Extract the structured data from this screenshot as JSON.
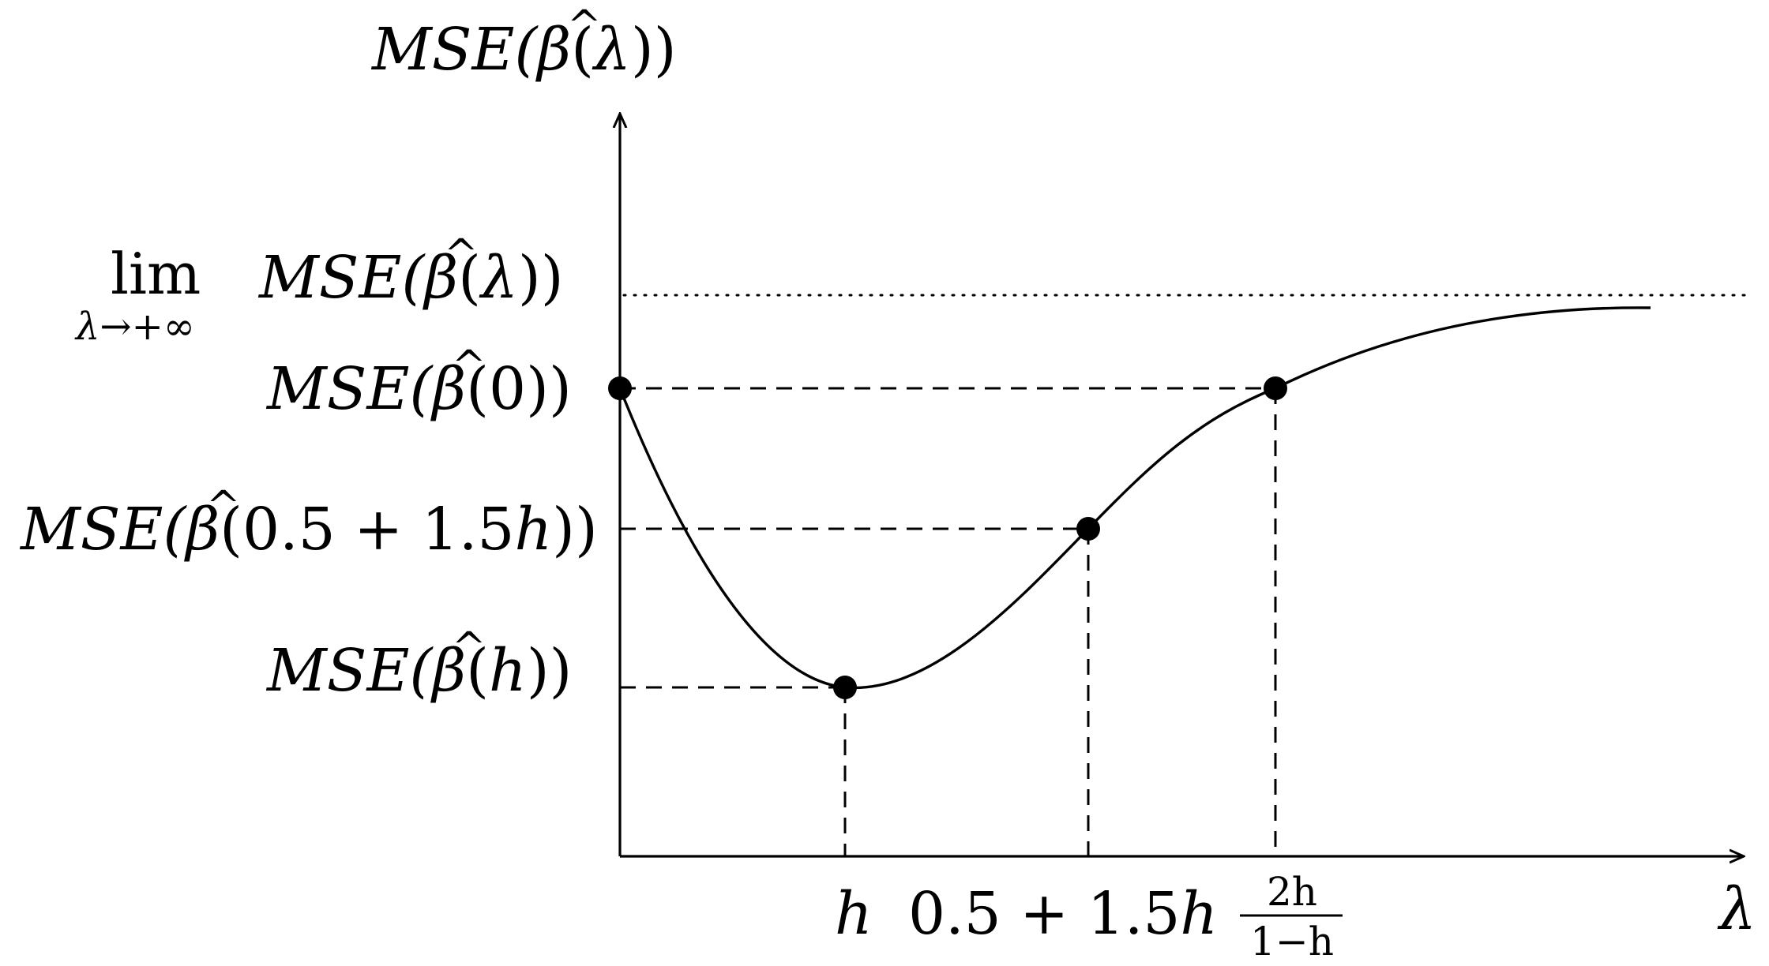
{
  "diagram": {
    "y_axis_label": {
      "pre": "MSE(",
      "beta": "β",
      "mid": "(",
      "arg": "λ",
      "post": "))"
    },
    "x_axis_label": "λ",
    "limit_label": {
      "lim": "lim",
      "sub": "λ→+∞",
      "pre": "MSE(",
      "beta": "β",
      "mid": "(",
      "arg": "λ",
      "post": "))"
    },
    "y_labels": [
      {
        "id": "mse0",
        "pre": "MSE(",
        "beta": "β",
        "mid": "(",
        "arg": "0",
        "post": "))"
      },
      {
        "id": "mse-mid",
        "pre": "MSE(",
        "beta": "β",
        "mid": "(",
        "arg": "0.5 + 1.5",
        "arg_var": "h",
        "post": "))"
      },
      {
        "id": "mseh",
        "pre": "MSE(",
        "beta": "β",
        "mid": "(",
        "arg": "",
        "arg_var": "h",
        "post": "))"
      }
    ],
    "x_labels": {
      "h": "h",
      "mid_num": "0.5 + 1.5",
      "mid_var": "h",
      "frac_num": "2h",
      "frac_den": "1−h"
    },
    "points": [
      {
        "name": "point-lambda-0",
        "lambda": 0,
        "level": "MSE(β̂(0))"
      },
      {
        "name": "point-lambda-h",
        "lambda": "h",
        "level": "MSE(β̂(h))"
      },
      {
        "name": "point-lambda-mid",
        "lambda": "0.5+1.5h",
        "level": "MSE(β̂(0.5+1.5h))"
      },
      {
        "name": "point-lambda-frac",
        "lambda": "2h/(1-h)",
        "level": "MSE(β̂(0))"
      }
    ]
  }
}
